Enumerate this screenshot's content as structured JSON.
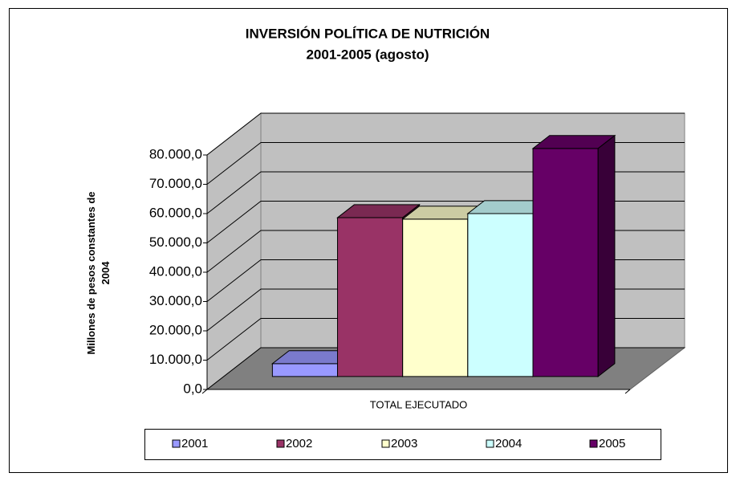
{
  "chart_data": {
    "type": "bar3d",
    "title": "INVERSIÓN POLÍTICA DE NUTRICIÓN",
    "subtitle": "2001-2005 (agosto)",
    "ylabel": [
      "Millones de pesos constantes de",
      "2004"
    ],
    "categories": [
      "TOTAL EJECUTADO"
    ],
    "series": [
      {
        "name": "2001",
        "color": "#9999ff",
        "values": [
          4400
        ]
      },
      {
        "name": "2002",
        "color": "#993366",
        "values": [
          54200
        ]
      },
      {
        "name": "2003",
        "color": "#ffffcc",
        "values": [
          53700
        ]
      },
      {
        "name": "2004",
        "color": "#ccffff",
        "values": [
          55600
        ]
      },
      {
        "name": "2005",
        "color": "#660066",
        "values": [
          77800
        ]
      }
    ],
    "ylim": [
      0,
      80000
    ],
    "yticks": [
      {
        "value": 0,
        "label": "0,0"
      },
      {
        "value": 10000,
        "label": "10.000,0"
      },
      {
        "value": 20000,
        "label": "20.000,0"
      },
      {
        "value": 30000,
        "label": "30.000,0"
      },
      {
        "value": 40000,
        "label": "40.000,0"
      },
      {
        "value": 50000,
        "label": "50.000,0"
      },
      {
        "value": 60000,
        "label": "60.000,0"
      },
      {
        "value": 70000,
        "label": "70.000,0"
      },
      {
        "value": 80000,
        "label": "80.000,0"
      }
    ],
    "grid": true,
    "legend": "bottom"
  }
}
